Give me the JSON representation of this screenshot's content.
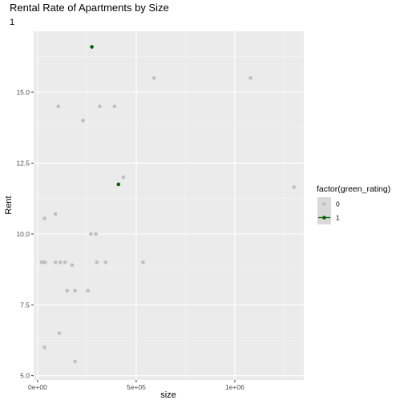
{
  "chart_data": {
    "type": "scatter",
    "title": "Rental Rate of Apartments by Size",
    "subtitle": "1",
    "xlabel": "size",
    "ylabel": "Rent",
    "xlim": [
      -20000,
      1350000
    ],
    "ylim": [
      4.85,
      17.15
    ],
    "x_ticks": [
      {
        "value": 0,
        "label": "0e+00"
      },
      {
        "value": 500000,
        "label": "5e+05"
      },
      {
        "value": 1000000,
        "label": "1e+06"
      }
    ],
    "y_ticks": [
      {
        "value": 5.0,
        "label": "5.0"
      },
      {
        "value": 7.5,
        "label": "7.5"
      },
      {
        "value": 10.0,
        "label": "10.0"
      },
      {
        "value": 12.5,
        "label": "12.5"
      },
      {
        "value": 15.0,
        "label": "15.0"
      }
    ],
    "grid": true,
    "legend": {
      "title": "factor(green_rating)",
      "position": "right",
      "entries": [
        {
          "label": "0",
          "color": "#bfbfbf"
        },
        {
          "label": "1",
          "color": "#006400"
        }
      ]
    },
    "series": [
      {
        "name": "0",
        "color": "#bfbfbf",
        "points": [
          {
            "x": 20000,
            "y": 9.0
          },
          {
            "x": 30000,
            "y": 9.0
          },
          {
            "x": 38000,
            "y": 9.0
          },
          {
            "x": 35000,
            "y": 10.55
          },
          {
            "x": 35000,
            "y": 6.0
          },
          {
            "x": 90000,
            "y": 10.7
          },
          {
            "x": 90000,
            "y": 9.0
          },
          {
            "x": 105000,
            "y": 14.5
          },
          {
            "x": 115000,
            "y": 9.0
          },
          {
            "x": 110000,
            "y": 6.5
          },
          {
            "x": 140000,
            "y": 9.0
          },
          {
            "x": 150000,
            "y": 8.0
          },
          {
            "x": 175000,
            "y": 8.9
          },
          {
            "x": 190000,
            "y": 8.0
          },
          {
            "x": 190000,
            "y": 5.5
          },
          {
            "x": 230000,
            "y": 14.0
          },
          {
            "x": 255000,
            "y": 8.0
          },
          {
            "x": 270000,
            "y": 10.0
          },
          {
            "x": 295000,
            "y": 10.0
          },
          {
            "x": 300000,
            "y": 9.0
          },
          {
            "x": 315000,
            "y": 14.5
          },
          {
            "x": 345000,
            "y": 9.0
          },
          {
            "x": 390000,
            "y": 14.5
          },
          {
            "x": 435000,
            "y": 12.0
          },
          {
            "x": 535000,
            "y": 9.0
          },
          {
            "x": 590000,
            "y": 15.5
          },
          {
            "x": 1080000,
            "y": 15.5
          },
          {
            "x": 1300000,
            "y": 11.65
          }
        ]
      },
      {
        "name": "1",
        "color": "#006400",
        "points": [
          {
            "x": 275000,
            "y": 16.6
          },
          {
            "x": 410000,
            "y": 11.75
          }
        ]
      }
    ]
  }
}
